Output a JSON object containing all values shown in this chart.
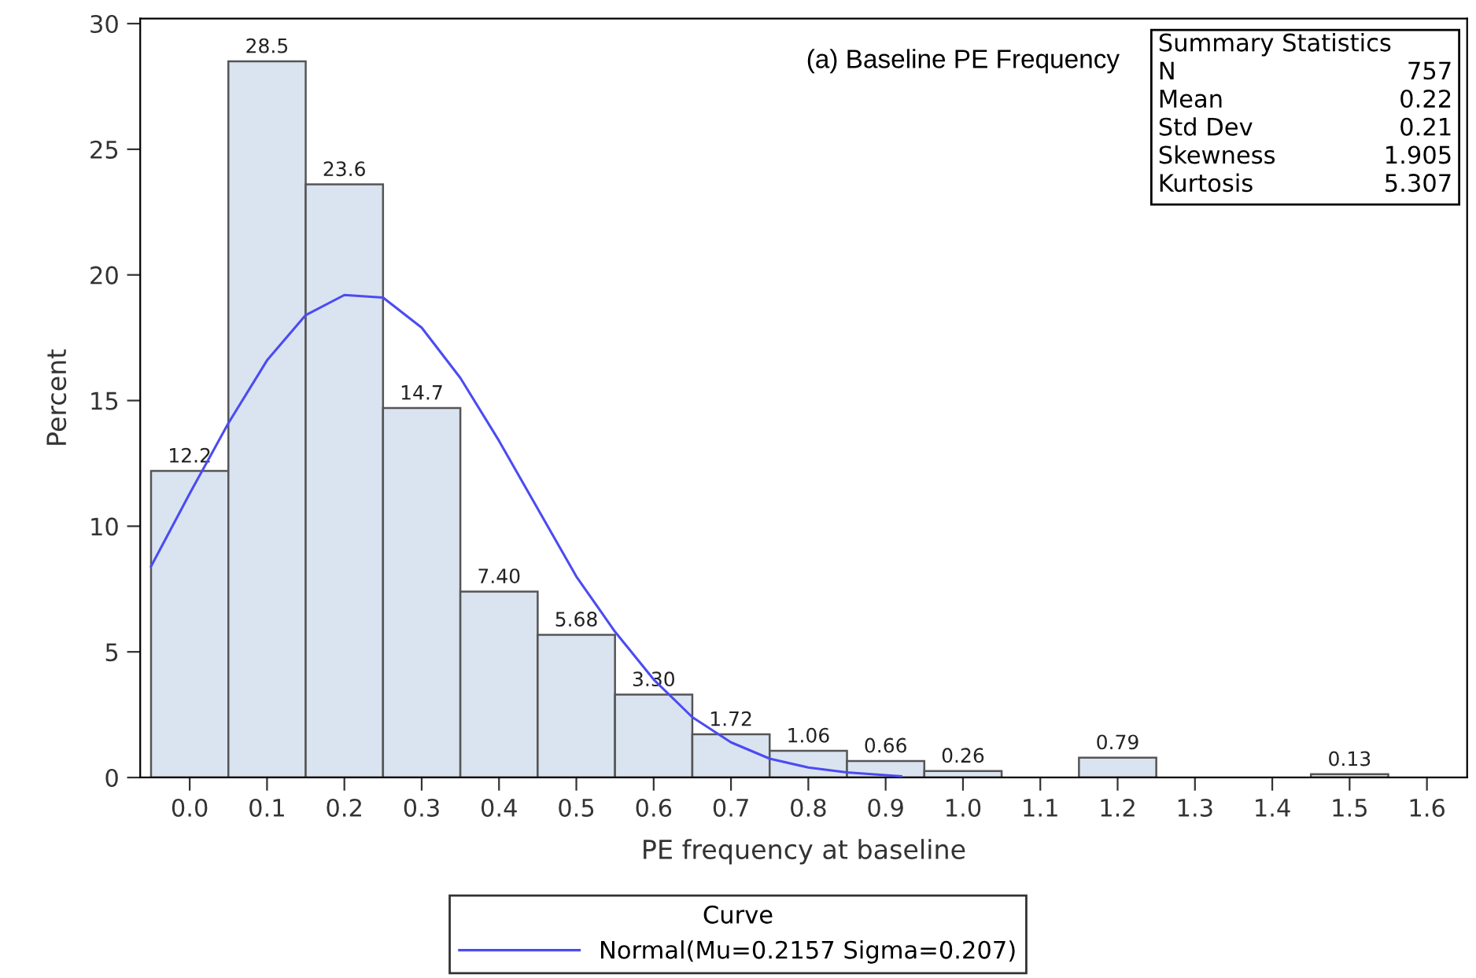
{
  "chart_data": {
    "type": "histogram",
    "title": "(a) Baseline PE Frequency",
    "xlabel": "PE frequency at baseline",
    "ylabel": "Percent",
    "bins": [
      -0.05,
      0.05,
      0.15,
      0.25,
      0.35,
      0.45,
      0.55,
      0.65,
      0.75,
      0.85,
      0.95,
      1.05,
      1.15,
      1.25,
      1.35,
      1.45,
      1.55
    ],
    "values": [
      12.2,
      28.5,
      23.6,
      14.7,
      7.4,
      5.68,
      3.3,
      1.72,
      1.06,
      0.66,
      0.26,
      0,
      0.79,
      0,
      0,
      0.13
    ],
    "value_labels": [
      "12.2",
      "28.5",
      "23.6",
      "14.7",
      "7.40",
      "5.68",
      "3.30",
      "1.72",
      "1.06",
      "0.66",
      "0.26",
      null,
      "0.79",
      null,
      null,
      "0.13"
    ],
    "color": "#dae3f0",
    "series": [
      {
        "name": "Normal(Mu=0.2157 Sigma=0.207)",
        "type": "line",
        "color": "#4b4bf2",
        "line_style": "solid",
        "x": [
          -0.05,
          0.0,
          0.05,
          0.1,
          0.15,
          0.2,
          0.25,
          0.3,
          0.35,
          0.4,
          0.45,
          0.5,
          0.55,
          0.6,
          0.65,
          0.7,
          0.75,
          0.8,
          0.85,
          0.92
        ],
        "values": [
          8.4,
          11.3,
          14.1,
          16.6,
          18.4,
          19.2,
          19.1,
          17.9,
          15.9,
          13.4,
          10.7,
          8.0,
          5.8,
          3.9,
          2.4,
          1.4,
          0.75,
          0.4,
          0.2,
          0.05
        ]
      }
    ],
    "legend_title": "Curve",
    "legend": "bottom",
    "annotations": [
      "Summary Statistics",
      "N",
      "757",
      "Mean",
      "0.22",
      "Std Dev",
      "0.21",
      "Skewness",
      "1.905",
      "Kurtosis",
      "5.307"
    ],
    "xlim": [
      -0.064,
      1.652
    ],
    "ylim": [
      0,
      30.2
    ],
    "xticks": [
      {
        "value": 0,
        "label": "0.0"
      },
      {
        "value": 0.1,
        "label": "0.1"
      },
      {
        "value": 0.2,
        "label": "0.2"
      },
      {
        "value": 0.3,
        "label": "0.3"
      },
      {
        "value": 0.4,
        "label": "0.4"
      },
      {
        "value": 0.5,
        "label": "0.5"
      },
      {
        "value": 0.6,
        "label": "0.6"
      },
      {
        "value": 0.7,
        "label": "0.7"
      },
      {
        "value": 0.8,
        "label": "0.8"
      },
      {
        "value": 0.9,
        "label": "0.9"
      },
      {
        "value": 1.0,
        "label": "1.0"
      },
      {
        "value": 1.1,
        "label": "1.1"
      },
      {
        "value": 1.2,
        "label": "1.2"
      },
      {
        "value": 1.3,
        "label": "1.3"
      },
      {
        "value": 1.4,
        "label": "1.4"
      },
      {
        "value": 1.5,
        "label": "1.5"
      },
      {
        "value": 1.6,
        "label": "1.6"
      }
    ],
    "yticks": [
      0,
      5,
      10,
      15,
      20,
      25,
      30
    ],
    "grid": false
  }
}
